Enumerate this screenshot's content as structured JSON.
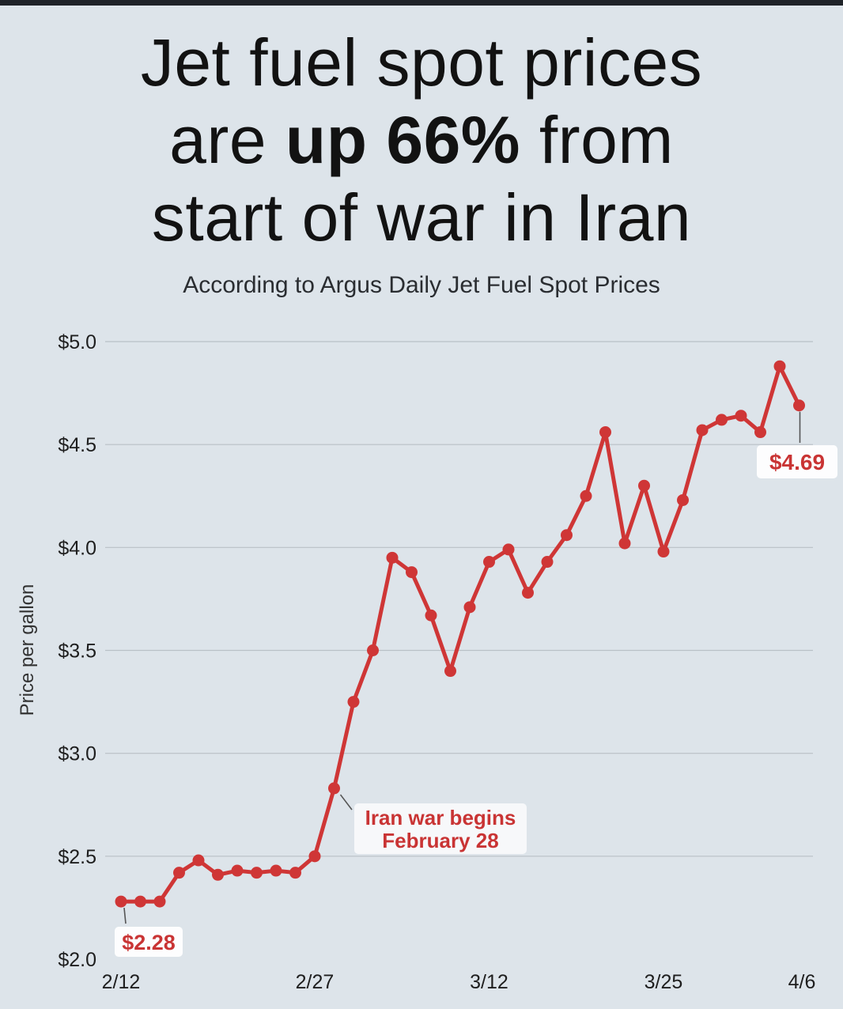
{
  "title": {
    "line1": "Jet fuel spot prices",
    "line2_pre": "are ",
    "line2_bold": "up 66%",
    "line2_post": " from",
    "line3": "start of war in Iran"
  },
  "subtitle": "According to Argus Daily Jet Fuel Spot Prices",
  "chart_data": {
    "type": "line",
    "ylabel": "Price per gallon",
    "ylim": [
      2.0,
      5.0
    ],
    "y_ticks": [
      2.0,
      2.5,
      3.0,
      3.5,
      4.0,
      4.5,
      5.0
    ],
    "y_tick_labels": [
      "$2.0",
      "$2.5",
      "$3.0",
      "$3.5",
      "$4.0",
      "$4.5",
      "$5.0"
    ],
    "x_tick_labels": [
      "2/12",
      "2/27",
      "3/12",
      "3/25",
      "4/6"
    ],
    "x_tick_index": [
      0,
      10,
      19,
      28,
      35
    ],
    "grid": true,
    "series": [
      {
        "color": "#cf3636",
        "values": [
          2.28,
          2.28,
          2.28,
          2.42,
          2.48,
          2.41,
          2.43,
          2.42,
          2.43,
          2.42,
          2.5,
          2.83,
          3.25,
          3.5,
          3.95,
          3.88,
          3.67,
          3.4,
          3.71,
          3.93,
          3.99,
          3.78,
          3.93,
          4.06,
          4.25,
          4.56,
          4.02,
          4.3,
          3.98,
          4.23,
          4.57,
          4.62,
          4.64,
          4.56,
          4.88,
          4.69
        ]
      }
    ],
    "annotations": [
      {
        "index": 0,
        "text": "$2.28"
      },
      {
        "index": 11,
        "lines": [
          "Iran war begins",
          "February 28"
        ]
      },
      {
        "index": 35,
        "text": "$4.69"
      }
    ]
  }
}
